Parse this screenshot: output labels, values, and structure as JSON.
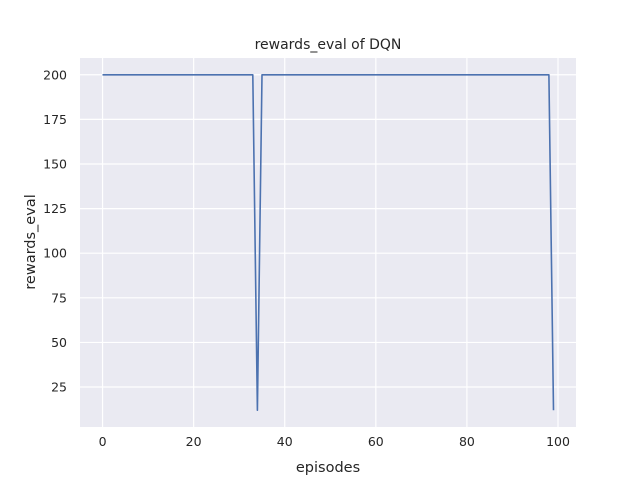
{
  "chart_data": {
    "type": "line",
    "title": "rewards_eval of DQN",
    "xlabel": "episodes",
    "ylabel": "rewards_eval",
    "xlim": [
      -4.95,
      103.95
    ],
    "ylim": [
      2.6,
      209.4
    ],
    "xticks": [
      0,
      20,
      40,
      60,
      80,
      100
    ],
    "yticks": [
      25,
      50,
      75,
      100,
      125,
      150,
      175,
      200
    ],
    "grid": true,
    "background": "#eaeaf2",
    "line_color": "#4c72b0",
    "series": [
      {
        "x": [
          0,
          33,
          34,
          35,
          98,
          99
        ],
        "y": [
          200,
          200,
          12,
          200,
          200,
          12
        ]
      }
    ]
  }
}
